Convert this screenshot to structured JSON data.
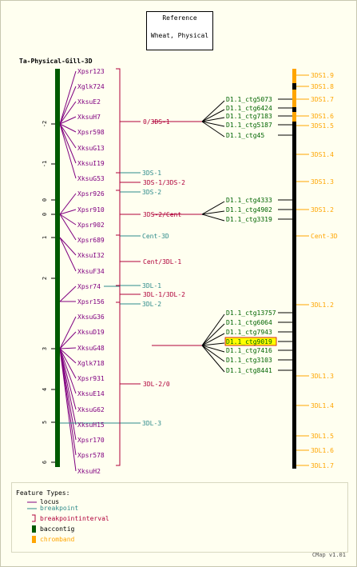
{
  "reference": {
    "title": "Reference",
    "map": "Wheat, Physical"
  },
  "map_title": "Ta-Physical-Gill-3D",
  "colors": {
    "locus": "#800080",
    "breakpoint": "#2e8b8b",
    "interval": "#b0003a",
    "baccontig": "#005a00",
    "chromband": "#ffa500",
    "ctg": "#006400",
    "highlight": "#ffff00"
  },
  "ticks": [
    "-2",
    "-1",
    "0",
    "0",
    "1",
    "2",
    "3",
    "4",
    "5",
    "6"
  ],
  "loci": [
    "Xpsr123",
    "Xglk724",
    "XksuE2",
    "XksuH7",
    "Xpsr598",
    "XksuG13",
    "XksuI19",
    "XksuG53",
    "Xpsr926",
    "Xpsr910",
    "Xpsr902",
    "Xpsr689",
    "XksuI32",
    "XksuF34",
    "Xpsr74",
    "Xpsr156",
    "XksuG36",
    "XksuD19",
    "XksuG48",
    "Xglk718",
    "Xpsr931",
    "XksuE14",
    "XksuG62",
    "XksuH15",
    "Xpsr170",
    "Xpsr578",
    "XksuH2"
  ],
  "intervals": [
    "0/3DS-1",
    "3DS-1/3DS-2",
    "3DS-2/Cent",
    "Cent/3DL-1",
    "3DL-1/3DL-2",
    "3DL-2/0"
  ],
  "breakpoints": [
    "3DS-1",
    "3DS-2",
    "Cent-3D",
    "3DL-1",
    "3DL-2",
    "3DL-3"
  ],
  "ctg_groups": [
    [
      "D1.1_ctg5073",
      "D1.1_ctg6424",
      "D1.1_ctg7183",
      "D1.1_ctg5187",
      "D1.1_ctg45"
    ],
    [
      "D1.1_ctg4333",
      "D1.1_ctg4902",
      "D1.1_ctg3319"
    ],
    [
      "D1.1_ctg13757",
      "D1.1_ctg6064",
      "D1.1_ctg7943",
      "D1.1_ctg9019",
      "D1.1_ctg7416",
      "D1.1_ctg3103",
      "D1.1_ctg8441"
    ]
  ],
  "highlighted_ctg": "D1.1_ctg9019",
  "bands": [
    "3DS1.9",
    "3DS1.8",
    "3DS1.7",
    "3DS1.6",
    "3DS1.5",
    "3DS1.4",
    "3DS1.3",
    "3DS1.2",
    "Cent-3D",
    "3DL1.2",
    "3DL1.3",
    "3DL1.4",
    "3DL1.5",
    "3DL1.6",
    "3DL1.7"
  ],
  "legend": {
    "title": "Feature Types:",
    "items": [
      "locus",
      "breakpoint",
      "breakpointinterval",
      "baccontig",
      "chromband"
    ]
  },
  "footer": "CMap v1.01"
}
